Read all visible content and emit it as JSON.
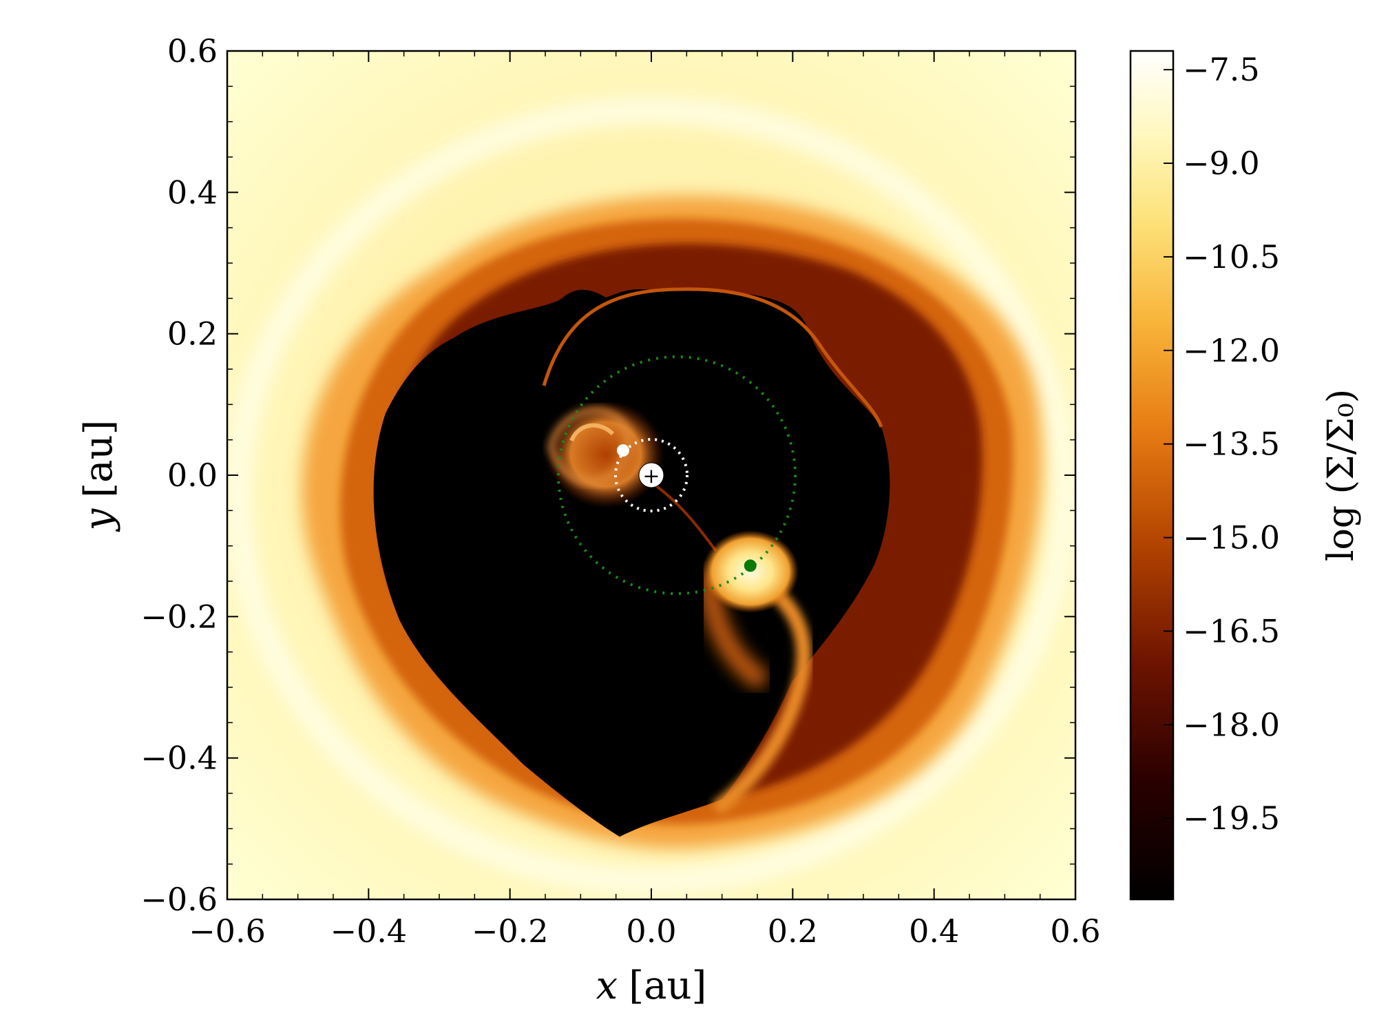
{
  "chart_data": {
    "type": "heatmap",
    "xlabel_var": "x",
    "ylabel_var": "y",
    "unit": "[au]",
    "xlim": [
      -0.6,
      0.6
    ],
    "ylim": [
      -0.6,
      0.6
    ],
    "xticks": [
      -0.6,
      -0.4,
      -0.2,
      0.0,
      0.2,
      0.4,
      0.6
    ],
    "yticks": [
      -0.6,
      -0.4,
      -0.2,
      0.0,
      0.2,
      0.4,
      0.6
    ],
    "xtick_labels": [
      "−0.6",
      "−0.4",
      "−0.2",
      "0.0",
      "0.2",
      "0.4",
      "0.6"
    ],
    "ytick_labels": [
      "−0.6",
      "−0.4",
      "−0.2",
      "0.0",
      "0.2",
      "0.4",
      "0.6"
    ],
    "colorbar": {
      "label": "log (Σ/Σ₀)",
      "range": [
        -20.8,
        -7.2
      ],
      "ticks": [
        -7.5,
        -9.0,
        -10.5,
        -12.0,
        -13.5,
        -15.0,
        -16.5,
        -18.0,
        -19.5
      ],
      "tick_labels": [
        "−7.5",
        "−9.0",
        "−10.5",
        "−12.0",
        "−13.5",
        "−15.0",
        "−16.5",
        "−18.0",
        "−19.5"
      ],
      "colormap": "afmhot",
      "colors": [
        "#000000",
        "#3a0000",
        "#8a2a00",
        "#c85a00",
        "#f09020",
        "#fbd060",
        "#fff3a8",
        "#fffff0"
      ]
    },
    "markers": [
      {
        "name": "primary",
        "x": 0.0,
        "y": 0.0,
        "color": "#ffffff",
        "symbol": "+",
        "symbol_color": "#ff0000"
      },
      {
        "name": "secondary",
        "x": -0.04,
        "y": 0.035,
        "color": "#ffffff"
      },
      {
        "name": "planet",
        "x": 0.14,
        "y": -0.128,
        "color": "#0a7a0a"
      }
    ],
    "orbits": [
      {
        "center": [
          0.0,
          0.0
        ],
        "radius": 0.05,
        "color": "#ffffff",
        "style": "dotted"
      },
      {
        "center": [
          0.03,
          0.0
        ],
        "radius": 0.168,
        "color": "#1a8a1a",
        "style": "dotted"
      }
    ]
  }
}
